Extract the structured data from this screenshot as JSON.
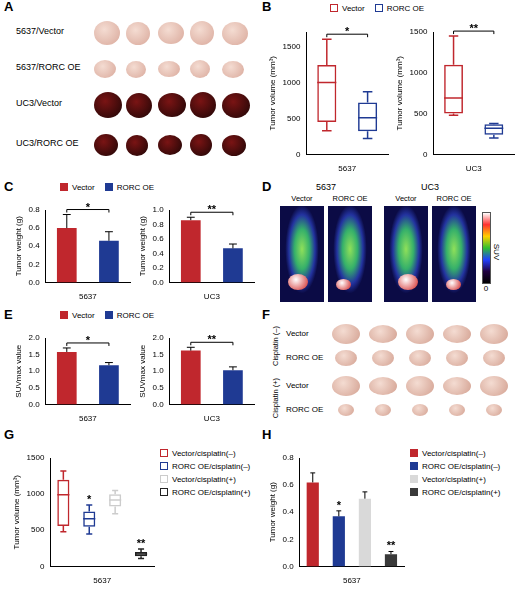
{
  "chart_data": [
    {
      "panel": "B",
      "type": "box",
      "categories": [
        "Vector",
        "RORC OE"
      ],
      "colors": [
        "#c0272d",
        "#1f3a93"
      ],
      "ylabel": "Tumor volume (mm³)",
      "legend": "top",
      "tick_labels": "y",
      "grid": false,
      "subplots": [
        {
          "xlabel": "5637",
          "stats": [
            {
              "min": 330,
              "q1": 450,
              "median": 1000,
              "q3": 1240,
              "max": 1600
            },
            {
              "min": 220,
              "q1": 320,
              "median": 510,
              "q3": 720,
              "max": 870
            }
          ],
          "ylim": [
            0,
            1700
          ],
          "yticks": [
            0,
            500,
            1000,
            1500
          ],
          "annotations": [
            {
              "text": "*",
              "categories": [
                "Vector",
                "RORC OE"
              ]
            }
          ]
        },
        {
          "xlabel": "UC3",
          "stats": [
            {
              "min": 480,
              "q1": 500,
              "median": 690,
              "q3": 1100,
              "max": 1450
            },
            {
              "min": 200,
              "q1": 240,
              "median": 320,
              "q3": 370,
              "max": 380
            }
          ],
          "ylim": [
            0,
            1500
          ],
          "yticks": [
            0,
            500,
            1000,
            1500
          ],
          "annotations": [
            {
              "text": "**",
              "categories": [
                "Vector",
                "RORC OE"
              ]
            }
          ]
        }
      ]
    },
    {
      "panel": "C",
      "type": "bar",
      "categories": [
        "Vector",
        "RORC OE"
      ],
      "colors": [
        "#c0272d",
        "#1f3a93"
      ],
      "ylabel": "Tumor weight (g)",
      "legend": "top",
      "tick_labels": "y",
      "grid": false,
      "subplots": [
        {
          "xlabel": "5637",
          "values": [
            0.6,
            0.46
          ],
          "errors": [
            0.15,
            0.1
          ],
          "ylim": [
            0,
            0.8
          ],
          "yticks": [
            {
              "value": 0,
              "label": "0.0"
            },
            0.2,
            0.4,
            0.6,
            0.8
          ],
          "annotations": [
            {
              "text": "*",
              "categories": [
                "Vector",
                "RORC OE"
              ]
            }
          ]
        },
        {
          "xlabel": "UC3",
          "values": [
            0.86,
            0.47
          ],
          "errors": [
            0.04,
            0.06
          ],
          "ylim": [
            0,
            1
          ],
          "yticks": [
            {
              "value": 0,
              "label": "0.0"
            },
            0.2,
            0.4,
            0.6,
            0.8,
            {
              "value": 1,
              "label": "1.0"
            }
          ],
          "annotations": [
            {
              "text": "**",
              "categories": [
                "Vector",
                "RORC OE"
              ]
            }
          ]
        }
      ]
    },
    {
      "panel": "E",
      "type": "bar",
      "categories": [
        "Vector",
        "RORC OE"
      ],
      "colors": [
        "#c0272d",
        "#1f3a93"
      ],
      "ylabel": "SUVmax value",
      "legend": "top",
      "tick_labels": "y",
      "grid": false,
      "subplots": [
        {
          "xlabel": "5637",
          "values": [
            1.58,
            1.18
          ],
          "errors": [
            0.12,
            0.08
          ],
          "ylim": [
            0,
            2
          ],
          "yticks": [
            {
              "value": 0,
              "label": "0.0"
            },
            0.5,
            {
              "value": 1,
              "label": "1.0"
            },
            1.5,
            {
              "value": 2,
              "label": "2.0"
            }
          ],
          "annotations": [
            {
              "text": "*",
              "categories": [
                "Vector",
                "RORC OE"
              ]
            }
          ]
        },
        {
          "xlabel": "UC3",
          "values": [
            1.62,
            1.03
          ],
          "errors": [
            0.1,
            0.1
          ],
          "ylim": [
            0,
            2
          ],
          "yticks": [
            {
              "value": 0,
              "label": "0.0"
            },
            0.5,
            {
              "value": 1,
              "label": "1.0"
            },
            1.5,
            {
              "value": 2,
              "label": "2.0"
            }
          ],
          "annotations": [
            {
              "text": "**",
              "categories": [
                "Vector",
                "RORC OE"
              ]
            }
          ]
        }
      ]
    },
    {
      "panel": "G",
      "type": "box",
      "categories": [
        "Vector/cisplatin(–)",
        "RORC OE/cisplatin(–)",
        "Vector/cisplatin(+)",
        "RORC OE/cisplatin(+)"
      ],
      "colors": [
        "#c0272d",
        "#1f3a93",
        "#cccccc",
        "#222222"
      ],
      "ylabel": "Tumor volume (mm³)",
      "xlabel": "5637",
      "legend": "right",
      "tick_labels": "y",
      "grid": false,
      "stats": [
        {
          "min": 480,
          "q1": 560,
          "median": 990,
          "q3": 1200,
          "max": 1320
        },
        {
          "min": 450,
          "q1": 550,
          "median": 660,
          "q3": 760,
          "max": 850
        },
        {
          "min": 730,
          "q1": 830,
          "median": 920,
          "q3": 1000,
          "max": 1050
        },
        {
          "min": 110,
          "q1": 140,
          "median": 170,
          "q3": 200,
          "max": 240
        }
      ],
      "ylim": [
        0,
        1500
      ],
      "yticks": [
        0,
        500,
        1000,
        1500
      ],
      "annotations": [
        {
          "text": "*",
          "category": "RORC OE/cisplatin(–)"
        },
        {
          "text": "**",
          "category": "RORC OE/cisplatin(+)"
        }
      ]
    },
    {
      "panel": "H",
      "type": "bar",
      "categories": [
        "Vector/cisplatin(–)",
        "RORC OE/cisplatin(–)",
        "Vector/cisplatin(+)",
        "RORC OE/cisplatin(+)"
      ],
      "colors": [
        "#c0272d",
        "#1f3a93",
        "#d9d9d9",
        "#3a3a3a"
      ],
      "ylabel": "Tumor weight (g)",
      "xlabel": "5637",
      "legend": "right",
      "tick_labels": "y",
      "grid": false,
      "values": [
        0.62,
        0.37,
        0.5,
        0.09
      ],
      "errors": [
        0.07,
        0.04,
        0.05,
        0.02
      ],
      "ylim": [
        0,
        0.8
      ],
      "yticks": [
        {
          "value": 0,
          "label": "0.0"
        },
        0.2,
        0.4,
        0.6,
        0.8
      ],
      "annotations": [
        {
          "text": "*",
          "category": "RORC OE/cisplatin(–)"
        },
        {
          "text": "**",
          "category": "RORC OE/cisplatin(+)"
        }
      ]
    }
  ],
  "images": [
    {
      "panel": "A",
      "row_labels": [
        "5637/Vector",
        "5637/RORC OE",
        "UC3/Vector",
        "UC3/RORC OE"
      ]
    },
    {
      "panel": "D",
      "groups": [
        "5637",
        "UC3"
      ],
      "columns": [
        "Vector",
        "RORC OE"
      ],
      "colorbar": {
        "title": "SUV",
        "ticks": [
          0
        ]
      }
    },
    {
      "panel": "F",
      "group_labels": [
        "Cisplatin (–)",
        "Cisplatin (+)"
      ],
      "row_labels": [
        "Vector",
        "RORC OE"
      ]
    }
  ]
}
